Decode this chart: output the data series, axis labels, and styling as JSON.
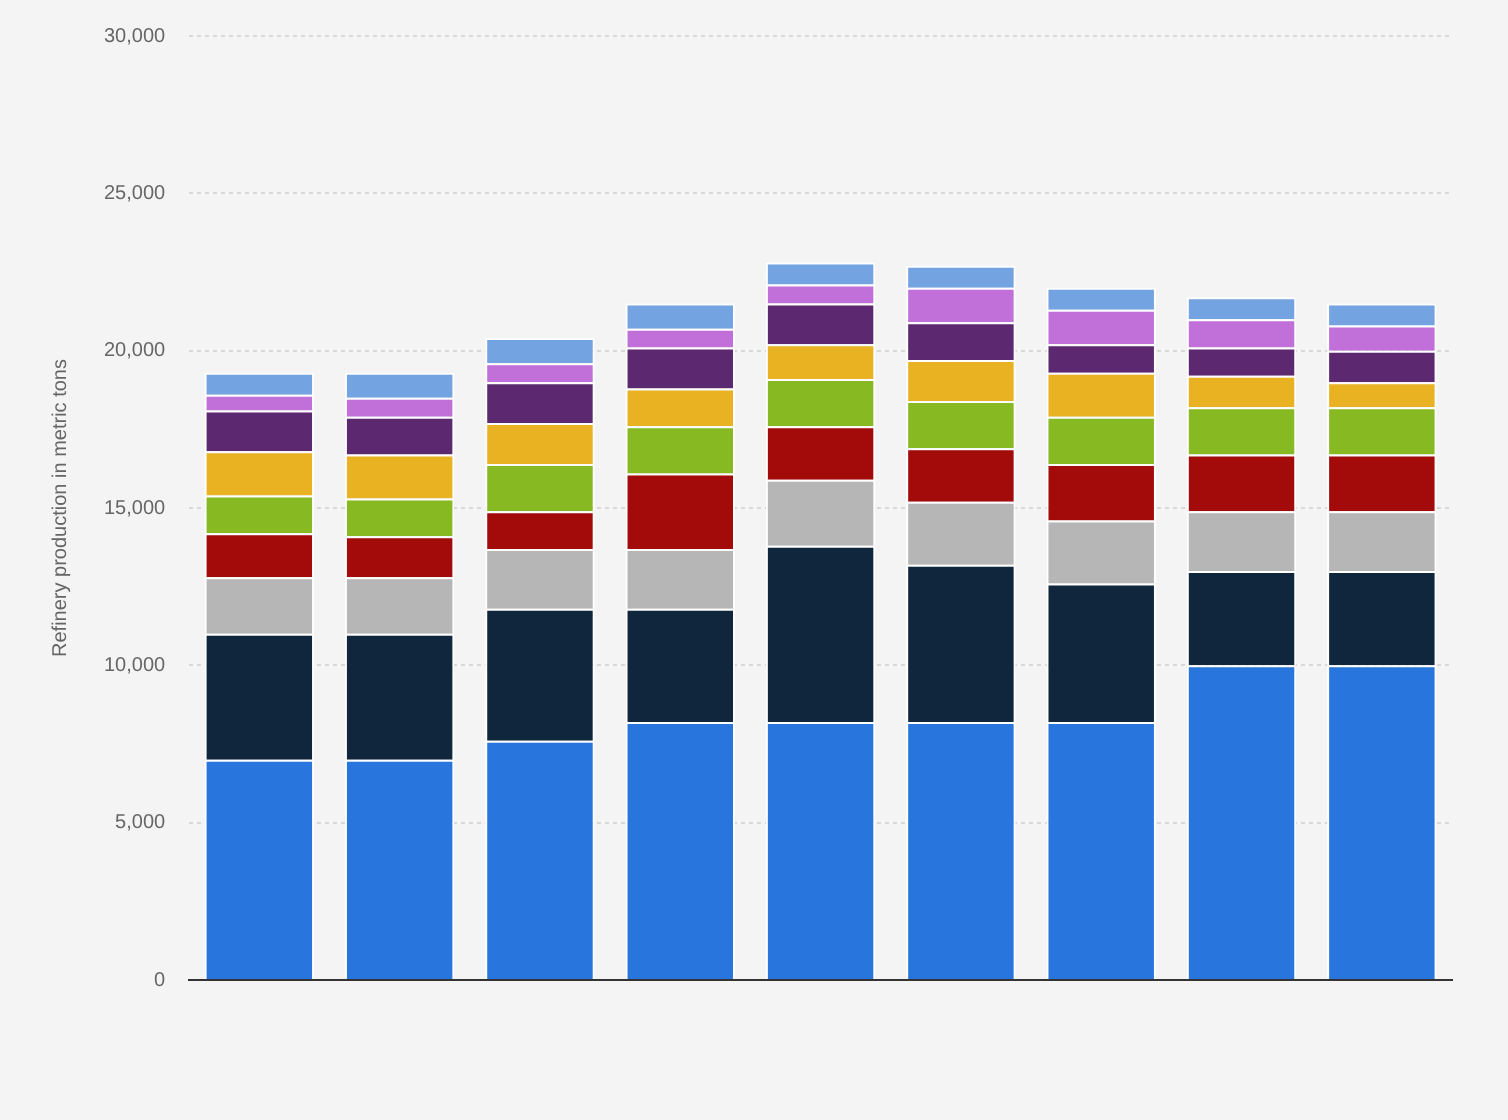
{
  "chart_data": {
    "type": "bar",
    "stacked": true,
    "ylabel": "Refinery production in metric tons",
    "categories": [
      null,
      null,
      null,
      null,
      null,
      null,
      null,
      null,
      null
    ],
    "series": [
      {
        "color": "#2876dd",
        "values": [
          7000,
          7000,
          7600,
          8200,
          8200,
          8200,
          8200,
          10000,
          10000
        ]
      },
      {
        "color": "#10263d",
        "values": [
          4000,
          4000,
          4200,
          3600,
          5600,
          5000,
          4400,
          3000,
          3000
        ]
      },
      {
        "color": "#b6b6b6",
        "values": [
          1800,
          1800,
          1900,
          1900,
          2100,
          2000,
          2000,
          1900,
          1900
        ]
      },
      {
        "color": "#a30a0a",
        "values": [
          1400,
          1300,
          1200,
          2400,
          1700,
          1700,
          1800,
          1800,
          1800
        ]
      },
      {
        "color": "#87b922",
        "values": [
          1200,
          1200,
          1500,
          1500,
          1500,
          1500,
          1500,
          1500,
          1500
        ]
      },
      {
        "color": "#e9b223",
        "values": [
          1400,
          1400,
          1300,
          1200,
          1100,
          1300,
          1400,
          1000,
          800
        ]
      },
      {
        "color": "#5c2870",
        "values": [
          1300,
          1200,
          1300,
          1300,
          1300,
          1200,
          900,
          900,
          1000
        ]
      },
      {
        "color": "#c070d8",
        "values": [
          500,
          600,
          600,
          600,
          600,
          1100,
          1100,
          900,
          800
        ]
      },
      {
        "color": "#74a3e2",
        "values": [
          700,
          800,
          800,
          800,
          700,
          700,
          700,
          700,
          700
        ]
      }
    ],
    "ylim": [
      0,
      30000
    ],
    "yticks": [
      0,
      {
        "value": 5000,
        "label": "5,000"
      },
      {
        "value": 10000,
        "label": "10,000"
      },
      {
        "value": 15000,
        "label": "15,000"
      },
      {
        "value": 20000,
        "label": "20,000"
      },
      {
        "value": 25000,
        "label": "25,000"
      },
      {
        "value": 30000,
        "label": "30,000"
      }
    ],
    "grid": "y",
    "tick_labels": "y",
    "legend": false
  }
}
